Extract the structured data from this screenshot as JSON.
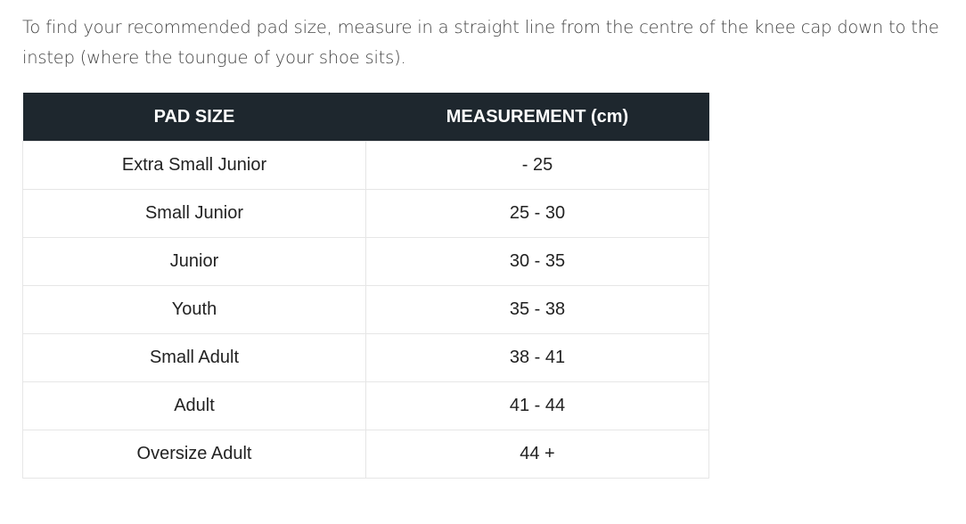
{
  "intro": "To find your recommended pad size, measure in a straight line from the centre of the knee cap down to the instep (where the toungue of your shoe sits).",
  "colors": {
    "header_bg": "#1e272e",
    "header_text": "#ffffff",
    "border": "#e6e6e6"
  },
  "table": {
    "headers": [
      "PAD SIZE",
      "MEASUREMENT (cm)"
    ],
    "rows": [
      [
        "Extra Small Junior",
        "- 25"
      ],
      [
        "Small Junior",
        "25 - 30"
      ],
      [
        "Junior",
        "30 - 35"
      ],
      [
        "Youth",
        "35 - 38"
      ],
      [
        "Small Adult",
        "38 - 41"
      ],
      [
        "Adult",
        "41 - 44"
      ],
      [
        "Oversize Adult",
        "44 +"
      ]
    ]
  }
}
